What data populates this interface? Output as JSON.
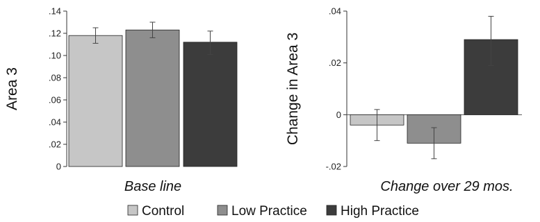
{
  "chart_data": [
    {
      "type": "bar",
      "caption": "Base line",
      "ylabel": "Area 3",
      "ylim": [
        0,
        0.14
      ],
      "yticks": [
        0,
        0.02,
        0.04,
        0.06,
        0.08,
        0.1,
        0.12,
        0.14
      ],
      "ytick_labels": [
        "0",
        ".02",
        ".04",
        ".06",
        ".08",
        ".10",
        ".12",
        ".14"
      ],
      "categories": [
        "Control",
        "Low Practice",
        "High Practice"
      ],
      "values": [
        0.118,
        0.123,
        0.112
      ],
      "error_low": [
        0.111,
        0.116,
        0.101
      ],
      "error_high": [
        0.125,
        0.13,
        0.122
      ]
    },
    {
      "type": "bar",
      "caption": "Change over 29 mos.",
      "ylabel": "Change in Area 3",
      "ylim": [
        -0.02,
        0.04
      ],
      "yticks": [
        -0.02,
        0,
        0.02,
        0.04
      ],
      "ytick_labels": [
        "-.02",
        "0",
        ".02",
        ".04"
      ],
      "categories": [
        "Control",
        "Low Practice",
        "High Practice"
      ],
      "values": [
        -0.004,
        -0.011,
        0.029
      ],
      "error_low": [
        -0.01,
        -0.017,
        0.019
      ],
      "error_high": [
        0.002,
        -0.005,
        0.038
      ]
    }
  ],
  "legend": {
    "items": [
      {
        "label": "Control",
        "color": "#c6c6c6"
      },
      {
        "label": "Low Practice",
        "color": "#8e8e8e"
      },
      {
        "label": "High Practice",
        "color": "#3c3c3c"
      }
    ]
  },
  "colors": {
    "bars": [
      "#c6c6c6",
      "#8e8e8e",
      "#3c3c3c"
    ],
    "errorbar": "#444444"
  }
}
